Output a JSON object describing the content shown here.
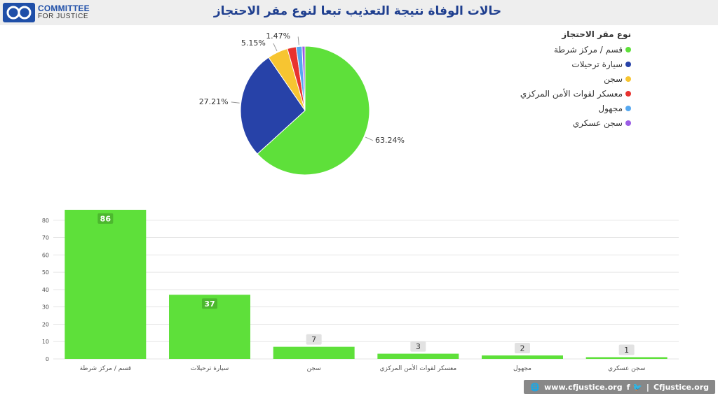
{
  "header": {
    "logo_line1": "COMMITTEE",
    "logo_line2": "FOR JUSTICE",
    "title": "حالات الوفاة نتيجة التعذيب تبعا لنوع مقر الاحتجاز"
  },
  "colors": {
    "green": "#5ee03a",
    "blue": "#2742a8",
    "yellow": "#f7c531",
    "red": "#e8322f",
    "lightblue": "#56a8f0",
    "purple": "#9b5de5",
    "brand": "#1f4fa8"
  },
  "chart_data": [
    {
      "type": "pie",
      "legend_title": "نوع مقر الاحتجاز",
      "legend_position": "top-right",
      "slices": [
        {
          "label": "قسم / مركز شرطة",
          "value": 63.24,
          "display": "63.24%",
          "color": "#5ee03a"
        },
        {
          "label": "سيارة ترحيلات",
          "value": 27.21,
          "display": "27.21%",
          "color": "#2742a8"
        },
        {
          "label": "سجن",
          "value": 5.15,
          "display": "5.15%",
          "color": "#f7c531"
        },
        {
          "label": "معسكر لقوات الأمن المركزي",
          "value": 2.21,
          "display": "",
          "color": "#e8322f"
        },
        {
          "label": "مجهول",
          "value": 1.47,
          "display": "1.47%",
          "color": "#56a8f0"
        },
        {
          "label": "سجن عسكري",
          "value": 0.74,
          "display": "",
          "color": "#9b5de5"
        }
      ]
    },
    {
      "type": "bar",
      "categories": [
        "قسم / مركز شرطة",
        "سيارة ترحيلات",
        "سجن",
        "معسكر لقوات الأمن المركزي",
        "مجهول",
        "سجن عسكري"
      ],
      "values": [
        86,
        37,
        7,
        3,
        2,
        1
      ],
      "ylim": [
        0,
        90
      ],
      "yticks": [
        0,
        10,
        20,
        30,
        40,
        50,
        60,
        70,
        80
      ],
      "grid": true,
      "color": "#5ee03a"
    }
  ],
  "footer": {
    "website": "www.cfjustice.org",
    "social_icons": "f 🐦",
    "handle": "Cfjustice.org"
  }
}
